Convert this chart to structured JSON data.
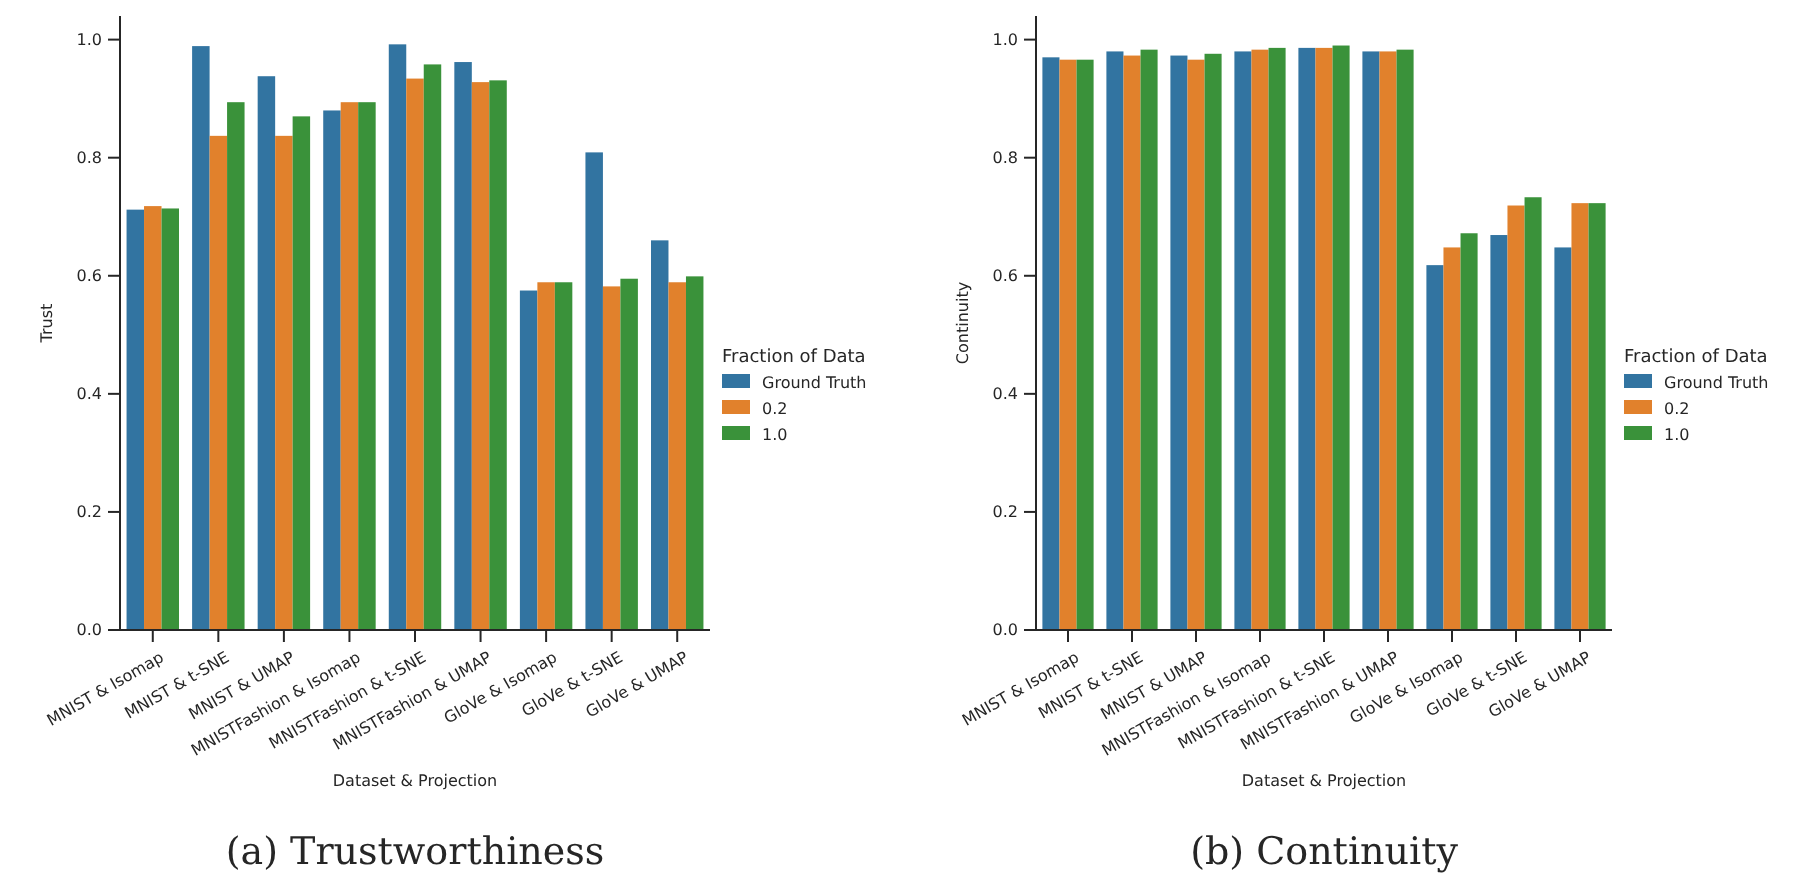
{
  "chart_data": [
    {
      "type": "bar",
      "xlabel": "Dataset & Projection",
      "ylabel": "Trust",
      "legend_title": "Fraction of Data",
      "legend": "right",
      "categories": [
        "MNIST & Isomap",
        "MNIST & t-SNE",
        "MNIST & UMAP",
        "MNISTFashion & Isomap",
        "MNISTFashion & t-SNE",
        "MNISTFashion & UMAP",
        "GloVe & Isomap",
        "GloVe & t-SNE",
        "GloVe & UMAP"
      ],
      "series": [
        {
          "name": "Ground Truth",
          "color": "#3274a1",
          "values": [
            0.712,
            0.989,
            0.938,
            0.88,
            0.992,
            0.962,
            0.575,
            0.809,
            0.66
          ]
        },
        {
          "name": "0.2",
          "color": "#e1812c",
          "values": [
            0.718,
            0.837,
            0.837,
            0.894,
            0.934,
            0.928,
            0.589,
            0.582,
            0.589
          ]
        },
        {
          "name": "1.0",
          "color": "#3a923a",
          "values": [
            0.714,
            0.894,
            0.87,
            0.894,
            0.958,
            0.931,
            0.589,
            0.595,
            0.599
          ]
        }
      ],
      "ylim": [
        0,
        1.04
      ],
      "yticks": [
        {
          "value": 0,
          "label": "0.0"
        },
        {
          "value": 0.2,
          "label": "0.2"
        },
        {
          "value": 0.4,
          "label": "0.4"
        },
        {
          "value": 0.6,
          "label": "0.6"
        },
        {
          "value": 0.8,
          "label": "0.8"
        },
        {
          "value": 1,
          "label": "1.0"
        }
      ],
      "annotations": [
        "(a) Trustworthiness"
      ]
    },
    {
      "type": "bar",
      "xlabel": "Dataset & Projection",
      "ylabel": "Continuity",
      "legend_title": "Fraction of Data",
      "legend": "right",
      "categories": [
        "MNIST & Isomap",
        "MNIST & t-SNE",
        "MNIST & UMAP",
        "MNISTFashion & Isomap",
        "MNISTFashion & t-SNE",
        "MNISTFashion & UMAP",
        "GloVe & Isomap",
        "GloVe & t-SNE",
        "GloVe & UMAP"
      ],
      "series": [
        {
          "name": "Ground Truth",
          "color": "#3274a1",
          "values": [
            0.97,
            0.98,
            0.973,
            0.98,
            0.986,
            0.98,
            0.618,
            0.669,
            0.648
          ]
        },
        {
          "name": "0.2",
          "color": "#e1812c",
          "values": [
            0.966,
            0.973,
            0.966,
            0.983,
            0.986,
            0.98,
            0.648,
            0.719,
            0.723
          ]
        },
        {
          "name": "1.0",
          "color": "#3a923a",
          "values": [
            0.966,
            0.983,
            0.976,
            0.986,
            0.99,
            0.983,
            0.672,
            0.733,
            0.723
          ]
        }
      ],
      "ylim": [
        0,
        1.04
      ],
      "yticks": [
        {
          "value": 0,
          "label": "0.0"
        },
        {
          "value": 0.2,
          "label": "0.2"
        },
        {
          "value": 0.4,
          "label": "0.4"
        },
        {
          "value": 0.6,
          "label": "0.6"
        },
        {
          "value": 0.8,
          "label": "0.8"
        },
        {
          "value": 1,
          "label": "1.0"
        }
      ],
      "annotations": [
        "(b) Continuity"
      ]
    }
  ]
}
